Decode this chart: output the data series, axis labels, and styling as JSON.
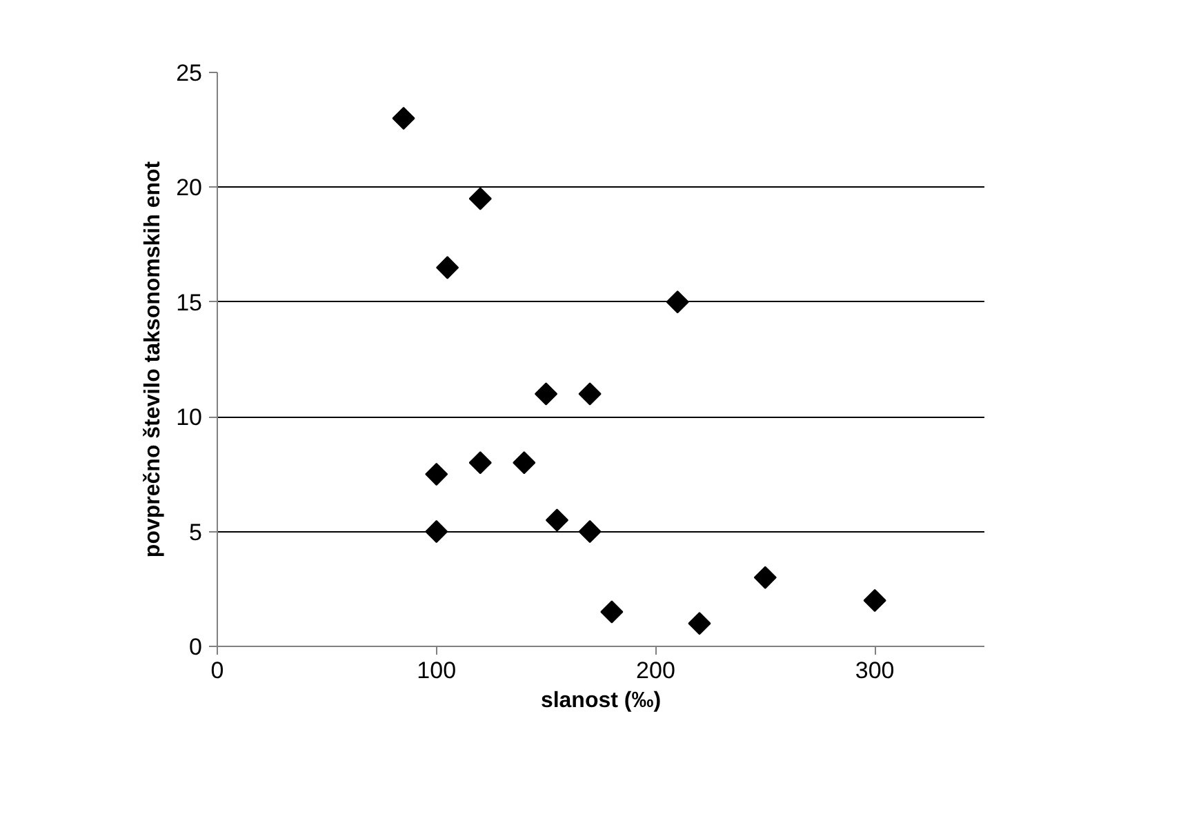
{
  "chart_data": {
    "type": "scatter",
    "xlabel": "slanost (‰)",
    "ylabel": "povprečno število taksonomskih enot",
    "x": [
      85,
      120,
      105,
      210,
      150,
      170,
      100,
      120,
      140,
      100,
      155,
      170,
      180,
      220,
      250,
      300
    ],
    "series": [
      {
        "color": "#000000",
        "values": [
          23,
          19.5,
          16.5,
          15,
          11,
          11,
          7.5,
          8,
          8,
          5,
          5.5,
          5,
          1.5,
          1,
          3,
          2
        ]
      }
    ],
    "xlim": [
      0,
      350
    ],
    "xticks": [
      0,
      100,
      200,
      300
    ],
    "ylim": [
      0,
      25
    ],
    "yticks": [
      0,
      5,
      10,
      15,
      20,
      25
    ],
    "grid": "y",
    "marker": "diamond"
  }
}
